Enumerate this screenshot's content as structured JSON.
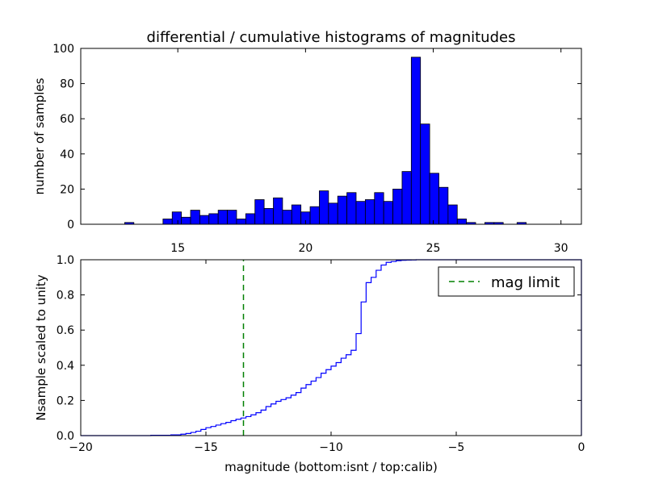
{
  "chart_data": [
    {
      "type": "bar",
      "title": "differential / cumulative histograms of magnitudes",
      "xlabel": "",
      "ylabel": "number of samples",
      "xlim": [
        11.2,
        30.8
      ],
      "ylim": [
        0,
        100
      ],
      "xticks": [
        15,
        20,
        25,
        30
      ],
      "yticks": [
        0,
        20,
        40,
        60,
        80,
        100
      ],
      "bin_width": 0.36,
      "bars_color": "#0000ff",
      "bins": [
        {
          "x": 13.1,
          "count": 1
        },
        {
          "x": 14.6,
          "count": 3
        },
        {
          "x": 14.96,
          "count": 7
        },
        {
          "x": 15.32,
          "count": 4
        },
        {
          "x": 15.68,
          "count": 8
        },
        {
          "x": 16.04,
          "count": 5
        },
        {
          "x": 16.4,
          "count": 6
        },
        {
          "x": 16.76,
          "count": 8
        },
        {
          "x": 17.12,
          "count": 8
        },
        {
          "x": 17.48,
          "count": 3
        },
        {
          "x": 17.84,
          "count": 6
        },
        {
          "x": 18.2,
          "count": 14
        },
        {
          "x": 18.56,
          "count": 9
        },
        {
          "x": 18.92,
          "count": 15
        },
        {
          "x": 19.28,
          "count": 8
        },
        {
          "x": 19.64,
          "count": 11
        },
        {
          "x": 20.0,
          "count": 7
        },
        {
          "x": 20.36,
          "count": 10
        },
        {
          "x": 20.72,
          "count": 19
        },
        {
          "x": 21.08,
          "count": 12
        },
        {
          "x": 21.44,
          "count": 16
        },
        {
          "x": 21.8,
          "count": 18
        },
        {
          "x": 22.16,
          "count": 13
        },
        {
          "x": 22.52,
          "count": 14
        },
        {
          "x": 22.88,
          "count": 18
        },
        {
          "x": 23.24,
          "count": 13
        },
        {
          "x": 23.6,
          "count": 20
        },
        {
          "x": 23.96,
          "count": 30
        },
        {
          "x": 24.32,
          "count": 95
        },
        {
          "x": 24.68,
          "count": 57
        },
        {
          "x": 25.04,
          "count": 29
        },
        {
          "x": 25.4,
          "count": 21
        },
        {
          "x": 25.76,
          "count": 11
        },
        {
          "x": 26.12,
          "count": 3
        },
        {
          "x": 26.48,
          "count": 1
        },
        {
          "x": 27.2,
          "count": 1
        },
        {
          "x": 27.56,
          "count": 1
        },
        {
          "x": 28.46,
          "count": 1
        }
      ]
    },
    {
      "type": "line",
      "title": "",
      "xlabel": "magnitude (bottom:isnt / top:calib)",
      "ylabel": "Nsample scaled to unity",
      "xlim": [
        -20,
        0
      ],
      "ylim": [
        0,
        1
      ],
      "xticks": [
        -20,
        -15,
        -10,
        -5,
        0
      ],
      "yticks": [
        0.0,
        0.2,
        0.4,
        0.6,
        0.8,
        1.0
      ],
      "ytick_labels": [
        "0.0",
        "0.2",
        "0.4",
        "0.6",
        "0.8",
        "1.0"
      ],
      "line_color": "#0000ff",
      "step_x": [
        -20,
        -17.2,
        -16.4,
        -16.0,
        -15.8,
        -15.6,
        -15.4,
        -15.2,
        -15.0,
        -14.8,
        -14.6,
        -14.4,
        -14.2,
        -14.0,
        -13.8,
        -13.6,
        -13.4,
        -13.2,
        -13.0,
        -12.8,
        -12.6,
        -12.4,
        -12.2,
        -12.0,
        -11.8,
        -11.6,
        -11.4,
        -11.2,
        -11.0,
        -10.8,
        -10.6,
        -10.4,
        -10.2,
        -10.0,
        -9.8,
        -9.6,
        -9.4,
        -9.2,
        -9.0,
        -8.8,
        -8.6,
        -8.4,
        -8.2,
        -8.0,
        -7.8,
        -7.6,
        -7.4,
        -7.2,
        -7.0,
        -6.8,
        -6.6,
        -6.4,
        -0.05
      ],
      "step_y": [
        0.0,
        0.002,
        0.004,
        0.008,
        0.012,
        0.018,
        0.025,
        0.035,
        0.045,
        0.052,
        0.06,
        0.068,
        0.075,
        0.085,
        0.093,
        0.1,
        0.108,
        0.118,
        0.13,
        0.145,
        0.165,
        0.18,
        0.195,
        0.205,
        0.215,
        0.23,
        0.245,
        0.27,
        0.29,
        0.31,
        0.33,
        0.355,
        0.375,
        0.395,
        0.415,
        0.44,
        0.46,
        0.485,
        0.58,
        0.76,
        0.87,
        0.9,
        0.94,
        0.97,
        0.985,
        0.99,
        0.995,
        0.997,
        0.998,
        0.999,
        1.0,
        1.0,
        1.0
      ],
      "mag_limit_x": -13.5,
      "mag_limit_color": "#008000",
      "legend": {
        "placement": "top-right",
        "entries": [
          {
            "label": "mag limit",
            "style": "dashed",
            "color": "#008000"
          }
        ]
      }
    }
  ]
}
